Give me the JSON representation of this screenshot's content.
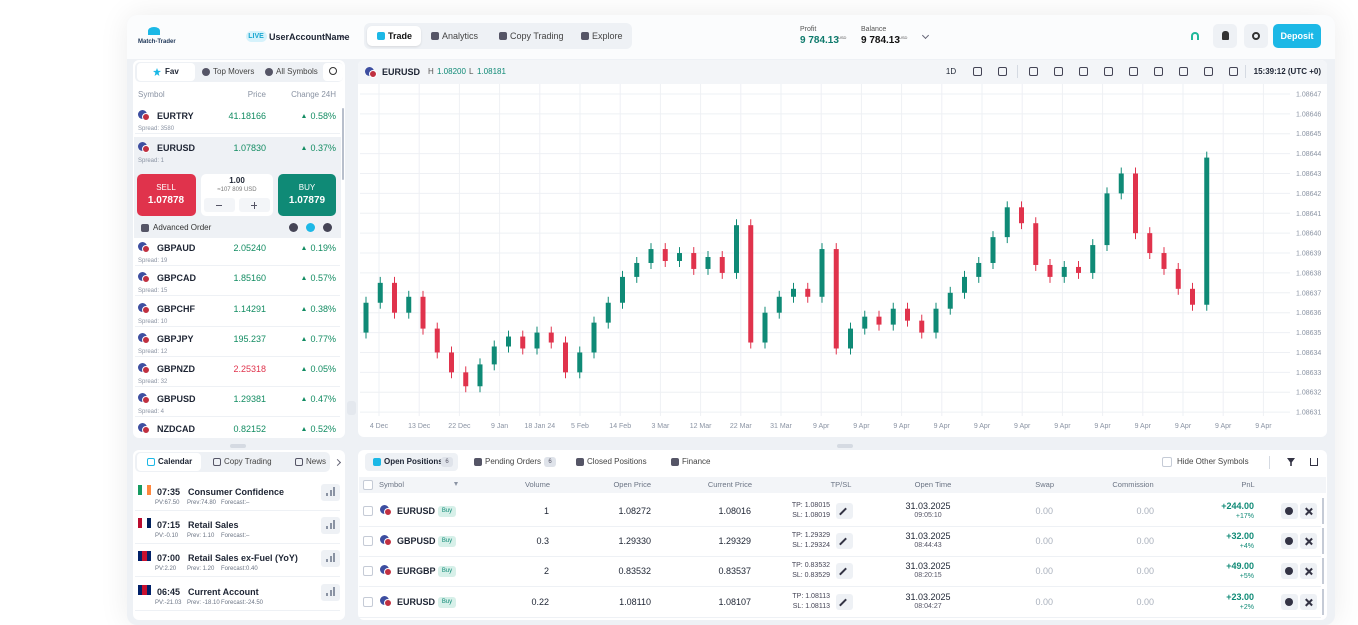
{
  "header": {
    "logo": "Match-Trader",
    "live": "LIVE",
    "account": "UserAccountName",
    "tabs": [
      "Trade",
      "Analytics",
      "Copy Trading",
      "Explore"
    ],
    "profit_label": "Profit",
    "profit": "9 784.13",
    "profit_unit": "USD",
    "balance_label": "Balance",
    "balance": "9 784.13",
    "balance_unit": "USD",
    "deposit": "Deposit"
  },
  "watchlist": {
    "tabs": [
      "Fav",
      "Top Movers",
      "All Symbols"
    ],
    "columns": [
      "Symbol",
      "Price",
      "Change 24H"
    ],
    "rows": [
      {
        "symbol": "EURTRY",
        "price": "41.18166",
        "change": "0.58%",
        "spread": "Spread: 3580",
        "price_color": "#128c62"
      },
      {
        "symbol": "EURUSD",
        "price": "1.07830",
        "change": "0.37%",
        "spread": "Spread: 1",
        "price_color": "#128c62"
      },
      {
        "symbol": "GBPAUD",
        "price": "2.05240",
        "change": "0.19%",
        "spread": "Spread: 19",
        "price_color": "#128c62"
      },
      {
        "symbol": "GBPCAD",
        "price": "1.85160",
        "change": "0.57%",
        "spread": "Spread: 15",
        "price_color": "#128c62"
      },
      {
        "symbol": "GBPCHF",
        "price": "1.14291",
        "change": "0.38%",
        "spread": "Spread: 10",
        "price_color": "#128c62"
      },
      {
        "symbol": "GBPJPY",
        "price": "195.237",
        "change": "0.77%",
        "spread": "Spread: 12",
        "price_color": "#128c62"
      },
      {
        "symbol": "GBPNZD",
        "price": "2.25318",
        "change": "0.05%",
        "spread": "Spread: 32",
        "price_color": "#e0334c"
      },
      {
        "symbol": "GBPUSD",
        "price": "1.29381",
        "change": "0.47%",
        "spread": "Spread: 4",
        "price_color": "#128c62"
      },
      {
        "symbol": "NZDCAD",
        "price": "0.82152",
        "change": "0.52%",
        "price_color": "#128c62"
      }
    ],
    "trade": {
      "sell": "SELL",
      "sell_price": "1.07878",
      "volume": "1.00",
      "volume_usd": "≈107 809 USD",
      "buy": "BUY",
      "buy_price": "1.07879"
    },
    "advanced": "Advanced Order"
  },
  "chart_data": {
    "type": "candlestick",
    "symbol": "EURUSD",
    "high_label": "H",
    "high": "1.08200",
    "low_label": "L",
    "low": "1.08181",
    "timeframe": "1D",
    "clock": "15:39:12 (UTC +0)",
    "up_color": "#0f8a76",
    "down_color": "#e0334c",
    "grid": true,
    "ylim": [
      1.0863,
      1.086474
    ],
    "yticks": [
      1.08647,
      1.08646,
      1.08645,
      1.08644,
      1.08643,
      1.08642,
      1.08641,
      {
        "value": 1.0864,
        "label": "1.08640"
      },
      1.08639,
      1.08638,
      1.08637,
      1.08636,
      1.08635,
      1.08634,
      1.08633,
      1.08632,
      1.08631
    ],
    "x_labels": [
      "4 Dec",
      "13 Dec",
      "22 Dec",
      "9 Jan",
      "18 Jan 24",
      "5 Feb",
      "14 Feb",
      "3 Mar",
      "12 Mar",
      "22 Mar",
      "31 Mar",
      "9 Apr",
      "9 Apr",
      "9 Apr",
      "9 Apr",
      "9 Apr",
      "9 Apr",
      "9 Apr",
      "9 Apr",
      "9 Apr",
      "9 Apr",
      "9 Apr",
      "9 Apr"
    ],
    "series": {
      "open": [
        1.08635,
        1.086365,
        1.086375,
        1.08636,
        1.086368,
        1.086352,
        1.08634,
        1.08633,
        1.086323,
        1.086334,
        1.086343,
        1.086348,
        1.086342,
        1.08635,
        1.086345,
        1.08633,
        1.08634,
        1.086355,
        1.086365,
        1.086378,
        1.086385,
        1.086392,
        1.086386,
        1.08639,
        1.086382,
        1.086388,
        1.08638,
        1.086404,
        1.086345,
        1.08636,
        1.086368,
        1.086372,
        1.086368,
        1.086392,
        1.086342,
        1.086352,
        1.086358,
        1.086354,
        1.086362,
        1.086356,
        1.08635,
        1.086362,
        1.08637,
        1.086378,
        1.086385,
        1.086398,
        1.086413,
        1.086405,
        1.086384,
        1.086378,
        1.086383,
        1.08638,
        1.086394,
        1.08642,
        1.08643,
        1.0864,
        1.08639,
        1.086382,
        1.086372,
        1.086364
      ],
      "high": [
        1.086368,
        1.086378,
        1.086378,
        1.086371,
        1.086371,
        1.086355,
        1.086343,
        1.086333,
        1.086337,
        1.086346,
        1.086351,
        1.086351,
        1.086353,
        1.086353,
        1.086348,
        1.086343,
        1.086358,
        1.086368,
        1.086381,
        1.086388,
        1.086395,
        1.086395,
        1.086393,
        1.086393,
        1.086391,
        1.086391,
        1.086407,
        1.086407,
        1.086363,
        1.086371,
        1.086375,
        1.086375,
        1.086395,
        1.086395,
        1.086355,
        1.086361,
        1.086361,
        1.086365,
        1.086365,
        1.086359,
        1.086365,
        1.086373,
        1.086381,
        1.086388,
        1.086401,
        1.086416,
        1.086416,
        1.086408,
        1.086387,
        1.086386,
        1.086386,
        1.086397,
        1.086423,
        1.086433,
        1.086433,
        1.086403,
        1.086393,
        1.086385,
        1.086375,
        1.086441
      ],
      "low": [
        1.086347,
        1.086362,
        1.086357,
        1.086357,
        1.086349,
        1.086337,
        1.086327,
        1.08632,
        1.08632,
        1.086331,
        1.08634,
        1.086339,
        1.086339,
        1.086342,
        1.086327,
        1.086327,
        1.086337,
        1.086352,
        1.086362,
        1.086375,
        1.086382,
        1.086383,
        1.086383,
        1.086379,
        1.086379,
        1.086377,
        1.086377,
        1.086342,
        1.086342,
        1.086357,
        1.086365,
        1.086365,
        1.086365,
        1.086339,
        1.086339,
        1.086349,
        1.086351,
        1.086351,
        1.086353,
        1.086347,
        1.086347,
        1.086359,
        1.086367,
        1.086375,
        1.086382,
        1.086395,
        1.086402,
        1.086381,
        1.086375,
        1.086375,
        1.086377,
        1.086377,
        1.086391,
        1.086417,
        1.086397,
        1.086387,
        1.086379,
        1.086369,
        1.086361,
        1.086361
      ],
      "close": [
        1.086365,
        1.086375,
        1.08636,
        1.086368,
        1.086352,
        1.08634,
        1.08633,
        1.086323,
        1.086334,
        1.086343,
        1.086348,
        1.086342,
        1.08635,
        1.086345,
        1.08633,
        1.08634,
        1.086355,
        1.086365,
        1.086378,
        1.086385,
        1.086392,
        1.086386,
        1.08639,
        1.086382,
        1.086388,
        1.08638,
        1.086404,
        1.086345,
        1.08636,
        1.086368,
        1.086372,
        1.086368,
        1.086392,
        1.086342,
        1.086352,
        1.086358,
        1.086354,
        1.086362,
        1.086356,
        1.08635,
        1.086362,
        1.08637,
        1.086378,
        1.086385,
        1.086398,
        1.086413,
        1.086405,
        1.086384,
        1.086378,
        1.086383,
        1.08638,
        1.086394,
        1.08642,
        1.08643,
        1.0864,
        1.08639,
        1.086382,
        1.086372,
        1.086364,
        1.086438
      ]
    }
  },
  "calendar": {
    "tabs": [
      "Calendar",
      "Copy Trading",
      "News"
    ],
    "events": [
      {
        "time": "07:35",
        "title": "Consumer Confidence",
        "details": [
          "PV:67.50",
          "Prev:74.80",
          "Forecast:–"
        ],
        "flag": [
          "#169b62",
          "#ffffff",
          "#ff883e"
        ]
      },
      {
        "time": "07:15",
        "title": "Retail Sales",
        "details": [
          "PV:-0.10",
          "Prev: 1.10",
          "Forecast:–"
        ],
        "flag": [
          "#ba0c2f",
          "#ffffff",
          "#00205b"
        ]
      },
      {
        "time": "07:00",
        "title": "Retail Sales ex-Fuel (YoY)",
        "details": [
          "PV:2.20",
          "Prev: 1.20",
          "Forecast:0.40"
        ],
        "flag": [
          "#012169",
          "#c8102e",
          "#012169"
        ]
      },
      {
        "time": "06:45",
        "title": "Current Account",
        "details": [
          "PV:-21.03",
          "Prev: -18.10",
          "Forecast:-24.50"
        ],
        "flag": [
          "#012169",
          "#c8102e",
          "#012169"
        ]
      }
    ]
  },
  "positions": {
    "tabs": [
      {
        "label": "Open Positions",
        "count": "6"
      },
      {
        "label": "Pending Orders",
        "count": "6"
      },
      {
        "label": "Closed Positions"
      },
      {
        "label": "Finance"
      }
    ],
    "hide_other": "Hide Other Symbols",
    "columns": [
      "Symbol",
      "Volume",
      "Open Price",
      "Current Price",
      "TP/SL",
      "Open Time",
      "Swap",
      "Commission",
      "PnL"
    ],
    "rows": [
      {
        "symbol": "EURUSD",
        "side": "Buy",
        "volume": "1",
        "open_price": "1.08272",
        "current_price": "1.08016",
        "tp": "TP: 1.08015",
        "sl": "SL: 1.08019",
        "date": "31.03.2025",
        "time": "09:05:10",
        "swap": "0.00",
        "commission": "0.00",
        "pnl": "+244.00",
        "pnl_pct": "+17%"
      },
      {
        "symbol": "GBPUSD",
        "side": "Buy",
        "volume": "0.3",
        "open_price": "1.29330",
        "current_price": "1.29329",
        "tp": "TP: 1.29329",
        "sl": "SL: 1.29324",
        "date": "31.03.2025",
        "time": "08:44:43",
        "swap": "0.00",
        "commission": "0.00",
        "pnl": "+32.00",
        "pnl_pct": "+4%"
      },
      {
        "symbol": "EURGBP",
        "side": "Buy",
        "volume": "2",
        "open_price": "0.83532",
        "current_price": "0.83537",
        "tp": "TP: 0.83532",
        "sl": "SL: 0.83529",
        "date": "31.03.2025",
        "time": "08:20:15",
        "swap": "0.00",
        "commission": "0.00",
        "pnl": "+49.00",
        "pnl_pct": "+5%"
      },
      {
        "symbol": "EURUSD",
        "side": "Buy",
        "volume": "0.22",
        "open_price": "1.08110",
        "current_price": "1.08107",
        "tp": "TP: 1.08113",
        "sl": "SL: 1.08113",
        "date": "31.03.2025",
        "time": "08:04:27",
        "swap": "0.00",
        "commission": "0.00",
        "pnl": "+23.00",
        "pnl_pct": "+2%"
      }
    ]
  }
}
